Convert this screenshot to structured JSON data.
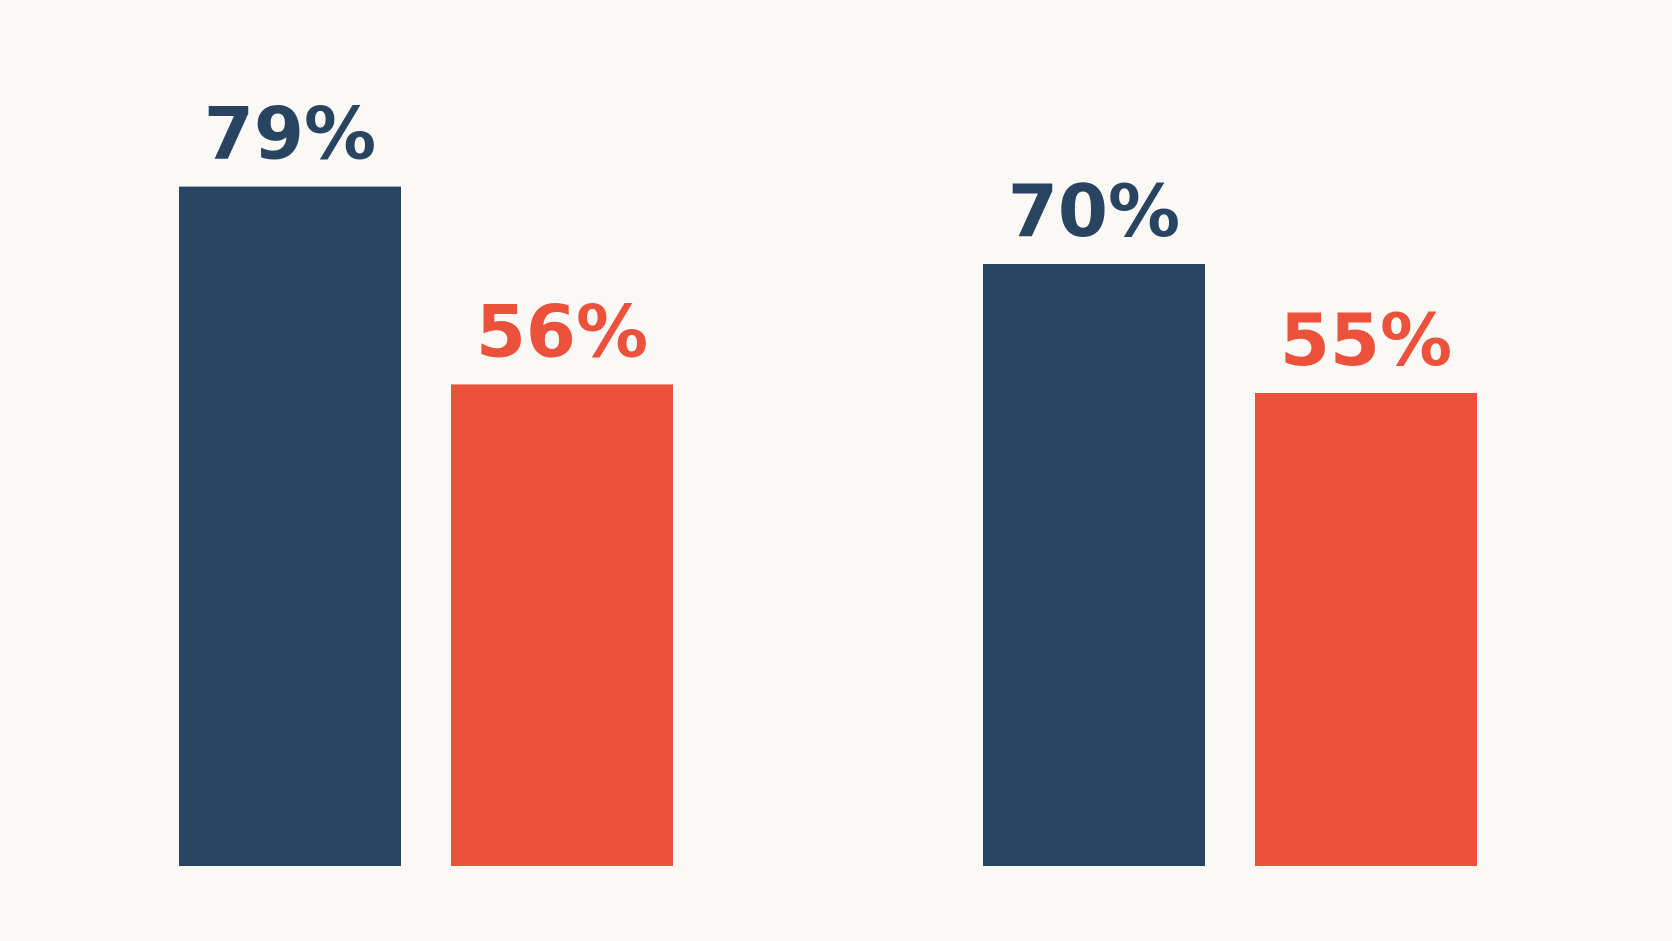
{
  "chart_data": {
    "type": "bar",
    "categories": [
      null,
      null
    ],
    "series": [
      {
        "color": "#284461",
        "values": [
          79,
          70
        ],
        "value_labels": [
          "79%",
          "70%"
        ]
      },
      {
        "color": "#eb513b",
        "values": [
          56,
          55
        ],
        "value_labels": [
          "56%",
          "55%"
        ]
      }
    ]
  }
}
